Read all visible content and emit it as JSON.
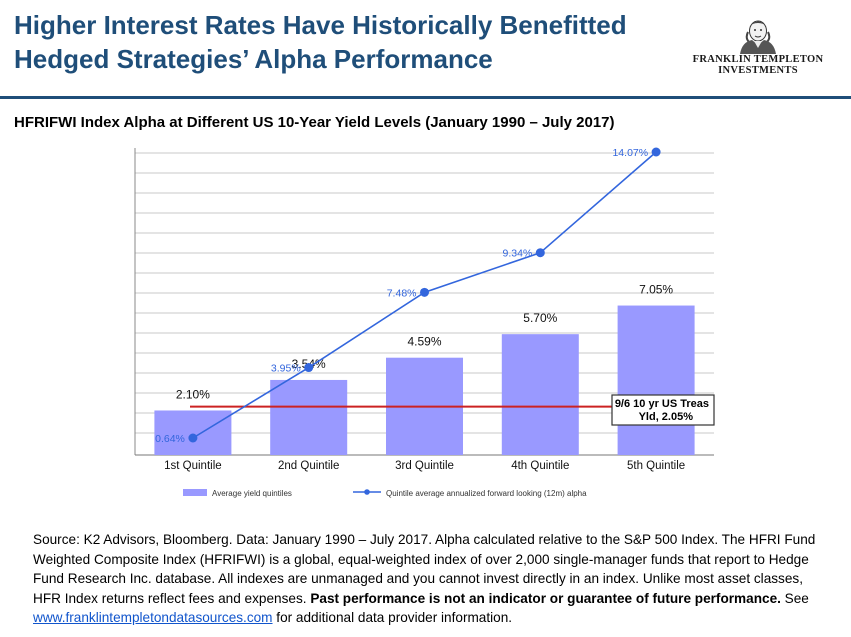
{
  "header": {
    "title_line1": "Higher Interest Rates Have Historically Benefitted",
    "title_line2": "Hedged Strategies’ Alpha Performance",
    "logo_line1": "FRANKLIN TEMPLETON",
    "logo_line2": "INVESTMENTS",
    "title_color": "#1f4e79"
  },
  "chart_data": {
    "type": "bar",
    "title": "HFRIFWI Index Alpha at Different US 10-Year Yield Levels (January 1990 – July 2017)",
    "categories": [
      "1st Quintile",
      "2nd Quintile",
      "3rd Quintile",
      "4th Quintile",
      "5th Quintile"
    ],
    "series": [
      {
        "name": "Average yield quintiles",
        "type": "bar",
        "values": [
          2.1,
          3.54,
          4.59,
          5.7,
          7.05
        ],
        "labels": [
          "2.10%",
          "3.54%",
          "4.59%",
          "5.70%",
          "7.05%"
        ],
        "color": "#9999ff"
      },
      {
        "name": "Quintile average annualized forward looking (12m) alpha",
        "type": "line",
        "values": [
          0.64,
          3.95,
          7.48,
          9.34,
          14.07
        ],
        "labels": [
          "0.64%",
          "3.95%",
          "7.48%",
          "9.34%",
          "14.07%"
        ],
        "color": "#3366dd"
      }
    ],
    "reference_line": {
      "label_line1": "9/6 10 yr US Treas",
      "label_line2": "Yld, 2.05%",
      "value": 2.05,
      "color": "#cc2222"
    },
    "grid": true,
    "legend_position": "bottom"
  },
  "footer": {
    "source_text": "Source: K2 Advisors, Bloomberg. Data: January 1990 – July 2017. Alpha calculated relative to the S&P 500 Index. The HFRI Fund Weighted Composite Index (HFRIFWI) is a global, equal-weighted index of over 2,000 single-manager funds that report to Hedge Fund Research Inc. database. All indexes are unmanaged and you cannot invest directly in an index. Unlike most asset classes, HFR Index returns reflect fees and expenses. ",
    "disclaimer_bold": "Past performance is not an indicator or guarantee of future performance.",
    "see_text": " See",
    "link_text": "www.franklintempletondatasources.com",
    "after_link": " for additional data provider information."
  }
}
